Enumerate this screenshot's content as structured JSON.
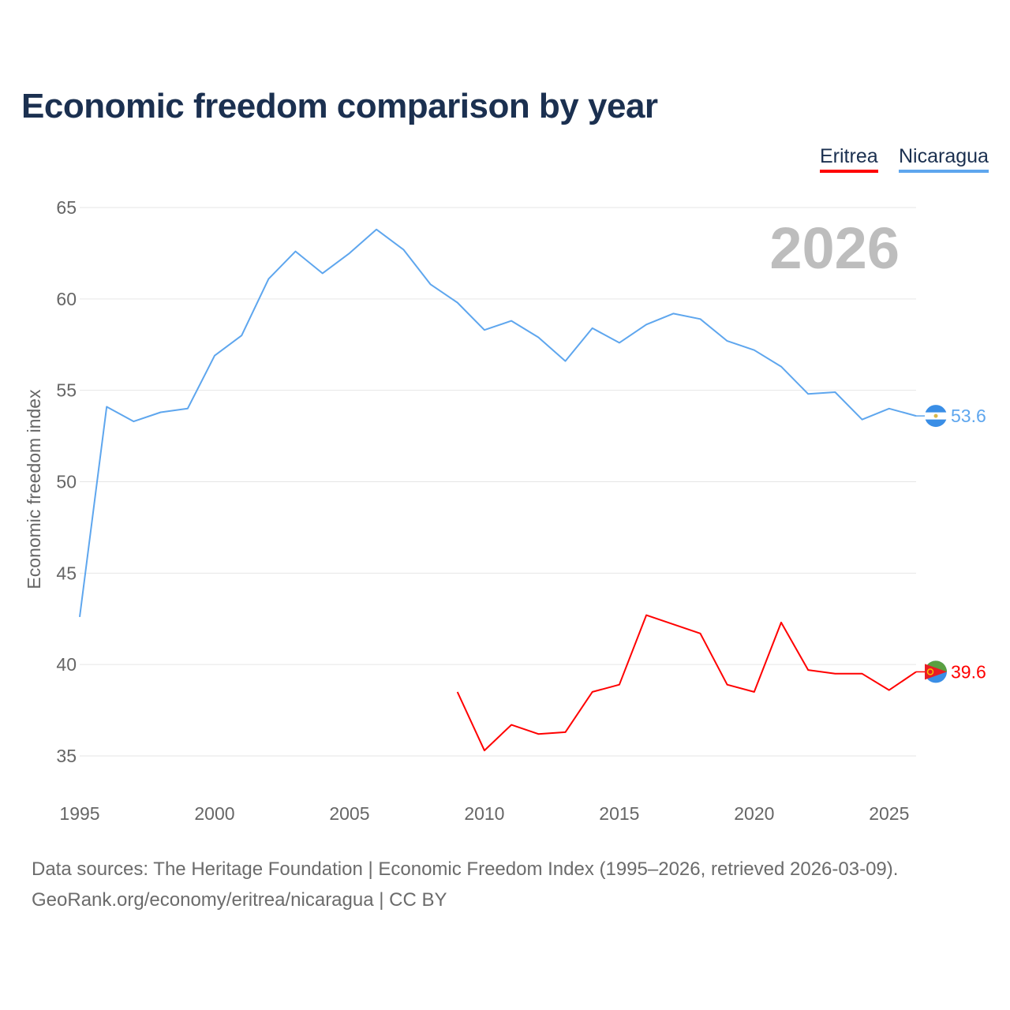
{
  "title": "Economic freedom comparison by year",
  "footer": {
    "line1": "Data sources: The Heritage Foundation | Economic Freedom Index (1995–2026, retrieved 2026-03-09).",
    "line2": "GeoRank.org/economy/eritrea/nicaragua | CC BY"
  },
  "chart_data": {
    "type": "line",
    "title": "Economic freedom comparison by year",
    "ylabel": "Economic freedom index",
    "xlabel": "",
    "ylim": [
      35,
      65
    ],
    "xlim": [
      1995,
      2026
    ],
    "yticks": [
      35,
      40,
      45,
      50,
      55,
      60,
      65
    ],
    "xticks": [
      1995,
      2000,
      2005,
      2010,
      2015,
      2020,
      2025
    ],
    "grid": true,
    "legend_position": "top-right",
    "year_label": "2026",
    "series": [
      {
        "name": "Eritrea",
        "color": "#ff0000",
        "end_label": "39.6",
        "x": [
          2009,
          2010,
          2011,
          2012,
          2013,
          2014,
          2015,
          2016,
          2017,
          2018,
          2019,
          2020,
          2021,
          2022,
          2023,
          2024,
          2025,
          2026
        ],
        "values": [
          38.5,
          35.3,
          36.7,
          36.2,
          36.3,
          38.5,
          38.9,
          42.7,
          42.2,
          41.7,
          38.9,
          38.5,
          42.3,
          39.7,
          39.5,
          39.5,
          38.6,
          39.6
        ]
      },
      {
        "name": "Nicaragua",
        "color": "#5ea6ee",
        "end_label": "53.6",
        "x": [
          1995,
          1996,
          1997,
          1998,
          1999,
          2000,
          2001,
          2002,
          2003,
          2004,
          2005,
          2006,
          2007,
          2008,
          2009,
          2010,
          2011,
          2012,
          2013,
          2014,
          2015,
          2016,
          2017,
          2018,
          2019,
          2020,
          2021,
          2022,
          2023,
          2024,
          2025,
          2026
        ],
        "values": [
          42.6,
          54.1,
          53.3,
          53.8,
          54.0,
          56.9,
          58.0,
          61.1,
          62.6,
          61.4,
          62.5,
          63.8,
          62.7,
          60.8,
          59.8,
          58.3,
          58.8,
          57.9,
          56.6,
          58.4,
          57.6,
          58.6,
          59.2,
          58.9,
          57.7,
          57.2,
          56.3,
          54.8,
          54.9,
          53.4,
          54.0,
          53.6
        ]
      }
    ]
  }
}
